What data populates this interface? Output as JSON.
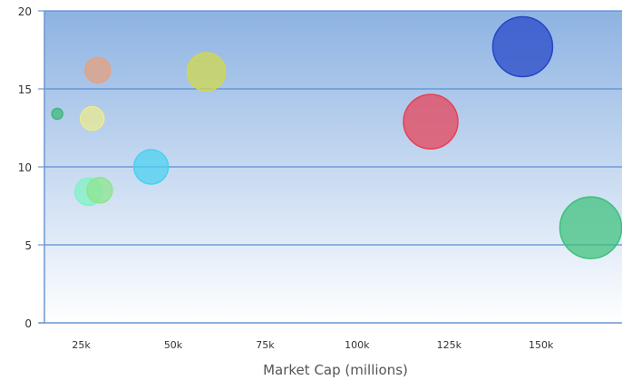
{
  "chart_data": {
    "type": "bubble",
    "title": "",
    "xlabel": "Market Cap (millions)",
    "ylabel": "",
    "xlim": [
      15000,
      172000
    ],
    "ylim": [
      0,
      20
    ],
    "x_ticks": [
      {
        "value": 25000,
        "label": "25k"
      },
      {
        "value": 50000,
        "label": "50k"
      },
      {
        "value": 75000,
        "label": "75k"
      },
      {
        "value": 100000,
        "label": "100k"
      },
      {
        "value": 125000,
        "label": "125k"
      },
      {
        "value": 150000,
        "label": "150k"
      }
    ],
    "y_ticks": [
      {
        "value": 0,
        "label": "0"
      },
      {
        "value": 5,
        "label": "5"
      },
      {
        "value": 10,
        "label": "10"
      },
      {
        "value": 15,
        "label": "15"
      },
      {
        "value": 20,
        "label": "20"
      }
    ],
    "grid": "horizontal",
    "legend": "none",
    "background_gradient": [
      "#8db3e2",
      "#ffffff"
    ],
    "points": [
      {
        "x": 18500,
        "y": 13.4,
        "size": 6,
        "color": "#3cb878"
      },
      {
        "x": 27000,
        "y": 8.4,
        "size": 15,
        "color": "#7ef2c4"
      },
      {
        "x": 28000,
        "y": 13.1,
        "size": 13,
        "color": "#ecec8c"
      },
      {
        "x": 29500,
        "y": 16.2,
        "size": 14,
        "color": "#e8a07a"
      },
      {
        "x": 30000,
        "y": 8.5,
        "size": 14,
        "color": "#8de48d"
      },
      {
        "x": 44000,
        "y": 10.0,
        "size": 19,
        "color": "#49d1f0"
      },
      {
        "x": 59000,
        "y": 16.1,
        "size": 21,
        "color": "#d2d84a"
      },
      {
        "x": 120000,
        "y": 12.9,
        "size": 30,
        "color": "#e84055"
      },
      {
        "x": 145000,
        "y": 17.7,
        "size": 33,
        "color": "#2645c8"
      },
      {
        "x": 163500,
        "y": 6.1,
        "size": 34,
        "color": "#3cc07c"
      }
    ]
  }
}
